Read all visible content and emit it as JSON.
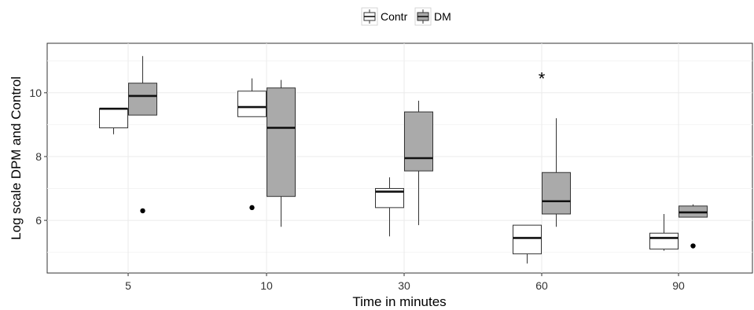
{
  "chart_data": {
    "type": "box",
    "title": "",
    "xlabel": "Time in minutes",
    "ylabel": "Log scale DPM and Control",
    "categories": [
      "5",
      "10",
      "30",
      "60",
      "90"
    ],
    "yticks": [
      6,
      8,
      10
    ],
    "ylim": [
      4.35,
      11.55
    ],
    "grid": true,
    "legend": {
      "position": "top",
      "entries": [
        "Contr",
        "DM"
      ]
    },
    "colors": {
      "Contr": "#ffffff",
      "DM": "#aaaaaa",
      "stroke": "#333333",
      "grid": "#ebebeb"
    },
    "series": [
      {
        "name": "Contr",
        "boxes": [
          {
            "category": "5",
            "min": 8.7,
            "q1": 8.9,
            "median": 9.5,
            "q3": 9.5,
            "max": 9.5,
            "outliers": []
          },
          {
            "category": "10",
            "min": 9.25,
            "q1": 9.25,
            "median": 9.55,
            "q3": 10.05,
            "max": 10.45,
            "outliers": [
              6.4
            ]
          },
          {
            "category": "30",
            "min": 5.5,
            "q1": 6.4,
            "median": 6.9,
            "q3": 7.0,
            "max": 7.35,
            "outliers": []
          },
          {
            "category": "60",
            "min": 4.65,
            "q1": 4.95,
            "median": 5.45,
            "q3": 5.85,
            "max": 5.85,
            "outliers": []
          },
          {
            "category": "90",
            "min": 5.05,
            "q1": 5.1,
            "median": 5.45,
            "q3": 5.6,
            "max": 6.2,
            "outliers": []
          }
        ]
      },
      {
        "name": "DM",
        "boxes": [
          {
            "category": "5",
            "min": 9.3,
            "q1": 9.3,
            "median": 9.9,
            "q3": 10.3,
            "max": 11.15,
            "outliers": [
              6.3
            ]
          },
          {
            "category": "10",
            "min": 5.8,
            "q1": 6.75,
            "median": 8.9,
            "q3": 10.15,
            "max": 10.4,
            "outliers": []
          },
          {
            "category": "30",
            "min": 5.85,
            "q1": 7.55,
            "median": 7.95,
            "q3": 9.4,
            "max": 9.75,
            "outliers": []
          },
          {
            "category": "60",
            "min": 5.8,
            "q1": 6.2,
            "median": 6.6,
            "q3": 7.5,
            "max": 9.2,
            "outliers": []
          },
          {
            "category": "90",
            "min": 6.1,
            "q1": 6.1,
            "median": 6.25,
            "q3": 6.45,
            "max": 6.5,
            "outliers": [
              5.2
            ]
          }
        ]
      }
    ],
    "annotations": [
      {
        "text": "*",
        "category": "60",
        "y": 10.55
      }
    ]
  }
}
